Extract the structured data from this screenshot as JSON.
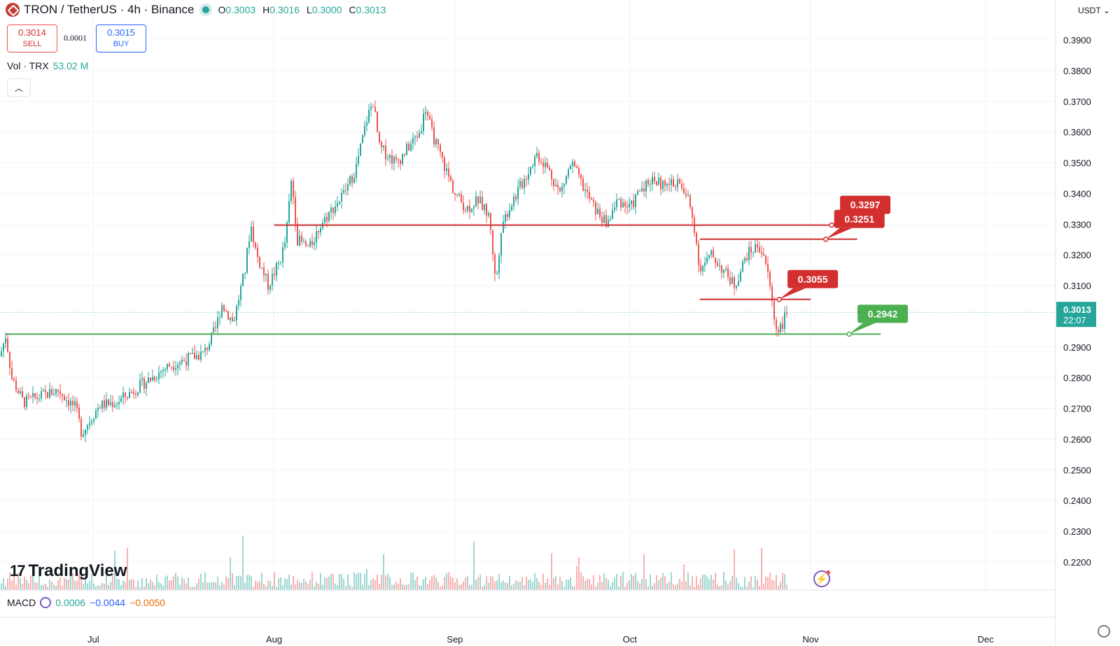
{
  "header": {
    "symbol": "TRON / TetherUS · 4h · Binance",
    "open_label": "O",
    "open": "0.3003",
    "high_label": "H",
    "high": "0.3016",
    "low_label": "L",
    "low": "0.3000",
    "close_label": "C",
    "close": "0.3013"
  },
  "trade": {
    "sell_price": "0.3014",
    "sell_label": "SELL",
    "spread": "0.0001",
    "buy_price": "0.3015",
    "buy_label": "BUY"
  },
  "volume_legend": {
    "label": "Vol · TRX",
    "value": "53.02 M"
  },
  "currency": "USDT",
  "brand": "TradingView",
  "macd": {
    "label": "MACD",
    "v1": "0.0006",
    "v2": "−0.0044",
    "v3": "−0.0050"
  },
  "colors": {
    "up": "#26a69a",
    "down": "#ef5350",
    "support": "#4caf50",
    "resistance": "#d32f2f",
    "price_tag": "#26a69a"
  },
  "chart_data": {
    "type": "candlestick",
    "symbol": "TRXUSDT",
    "interval": "4h",
    "y_axis": {
      "min": 0.22,
      "max": 0.39,
      "ticks": [
        "0.3900",
        "0.3800",
        "0.3700",
        "0.3600",
        "0.3500",
        "0.3400",
        "0.3300",
        "0.3200",
        "0.3100",
        "0.2900",
        "0.2800",
        "0.2700",
        "0.2600",
        "0.2500",
        "0.2400",
        "0.2300",
        "0.2200"
      ]
    },
    "x_axis": {
      "ticks": [
        {
          "label": "Jul",
          "date": "2024-07-01"
        },
        {
          "label": "Aug",
          "date": "2024-08-01"
        },
        {
          "label": "Sep",
          "date": "2024-09-01"
        },
        {
          "label": "Oct",
          "date": "2024-10-01"
        },
        {
          "label": "Nov",
          "date": "2024-11-01"
        },
        {
          "label": "Dec",
          "date": "2024-12-01"
        }
      ],
      "start": "2024-06-15",
      "end": "2024-12-13"
    },
    "price_path": [
      [
        "2024-06-15",
        0.287
      ],
      [
        "2024-06-16",
        0.294
      ],
      [
        "2024-06-17",
        0.28
      ],
      [
        "2024-06-19",
        0.272
      ],
      [
        "2024-06-22",
        0.274
      ],
      [
        "2024-06-25",
        0.276
      ],
      [
        "2024-06-28",
        0.27
      ],
      [
        "2024-06-29",
        0.262
      ],
      [
        "2024-07-02",
        0.271
      ],
      [
        "2024-07-05",
        0.272
      ],
      [
        "2024-07-08",
        0.276
      ],
      [
        "2024-07-11",
        0.28
      ],
      [
        "2024-07-14",
        0.284
      ],
      [
        "2024-07-17",
        0.286
      ],
      [
        "2024-07-20",
        0.288
      ],
      [
        "2024-07-22",
        0.296
      ],
      [
        "2024-07-23",
        0.304
      ],
      [
        "2024-07-25",
        0.298
      ],
      [
        "2024-07-27",
        0.315
      ],
      [
        "2024-07-28",
        0.33
      ],
      [
        "2024-07-29",
        0.32
      ],
      [
        "2024-07-31",
        0.31
      ],
      [
        "2024-08-02",
        0.318
      ],
      [
        "2024-08-03",
        0.325
      ],
      [
        "2024-08-04",
        0.345
      ],
      [
        "2024-08-05",
        0.325
      ],
      [
        "2024-08-07",
        0.322
      ],
      [
        "2024-08-09",
        0.33
      ],
      [
        "2024-08-11",
        0.335
      ],
      [
        "2024-08-13",
        0.34
      ],
      [
        "2024-08-15",
        0.348
      ],
      [
        "2024-08-17",
        0.365
      ],
      [
        "2024-08-18",
        0.37
      ],
      [
        "2024-08-19",
        0.355
      ],
      [
        "2024-08-22",
        0.35
      ],
      [
        "2024-08-24",
        0.355
      ],
      [
        "2024-08-26",
        0.36
      ],
      [
        "2024-08-27",
        0.368
      ],
      [
        "2024-08-28",
        0.36
      ],
      [
        "2024-08-30",
        0.35
      ],
      [
        "2024-09-01",
        0.34
      ],
      [
        "2024-09-03",
        0.335
      ],
      [
        "2024-09-05",
        0.338
      ],
      [
        "2024-09-07",
        0.332
      ],
      [
        "2024-09-08",
        0.31
      ],
      [
        "2024-09-09",
        0.33
      ],
      [
        "2024-09-11",
        0.338
      ],
      [
        "2024-09-13",
        0.345
      ],
      [
        "2024-09-15",
        0.353
      ],
      [
        "2024-09-17",
        0.348
      ],
      [
        "2024-09-19",
        0.34
      ],
      [
        "2024-09-21",
        0.35
      ],
      [
        "2024-09-23",
        0.342
      ],
      [
        "2024-09-25",
        0.335
      ],
      [
        "2024-09-27",
        0.33
      ],
      [
        "2024-09-29",
        0.338
      ],
      [
        "2024-10-01",
        0.335
      ],
      [
        "2024-10-03",
        0.342
      ],
      [
        "2024-10-05",
        0.345
      ],
      [
        "2024-10-07",
        0.342
      ],
      [
        "2024-10-09",
        0.344
      ],
      [
        "2024-10-11",
        0.338
      ],
      [
        "2024-10-12",
        0.33
      ],
      [
        "2024-10-13",
        0.315
      ],
      [
        "2024-10-15",
        0.32
      ],
      [
        "2024-10-17",
        0.315
      ],
      [
        "2024-10-19",
        0.31
      ],
      [
        "2024-10-21",
        0.32
      ],
      [
        "2024-10-23",
        0.323
      ],
      [
        "2024-10-24",
        0.32
      ],
      [
        "2024-10-25",
        0.31
      ],
      [
        "2024-10-26",
        0.296
      ],
      [
        "2024-10-27",
        0.297
      ],
      [
        "2024-10-28",
        0.3013
      ]
    ],
    "current_price": {
      "value": "0.3013",
      "countdown": "22:07"
    },
    "levels": [
      {
        "value": 0.3297,
        "label": "0.3297",
        "role": "resistance",
        "from": "2024-08-01",
        "to": "2024-11-10"
      },
      {
        "value": 0.3251,
        "label": "0.3251",
        "role": "resistance",
        "from": "2024-10-13",
        "to": "2024-11-09"
      },
      {
        "value": 0.3055,
        "label": "0.3055",
        "role": "resistance",
        "from": "2024-10-13",
        "to": "2024-11-01"
      },
      {
        "value": 0.2942,
        "label": "0.2942",
        "role": "support",
        "from": "2024-06-16",
        "to": "2024-11-13"
      }
    ]
  }
}
